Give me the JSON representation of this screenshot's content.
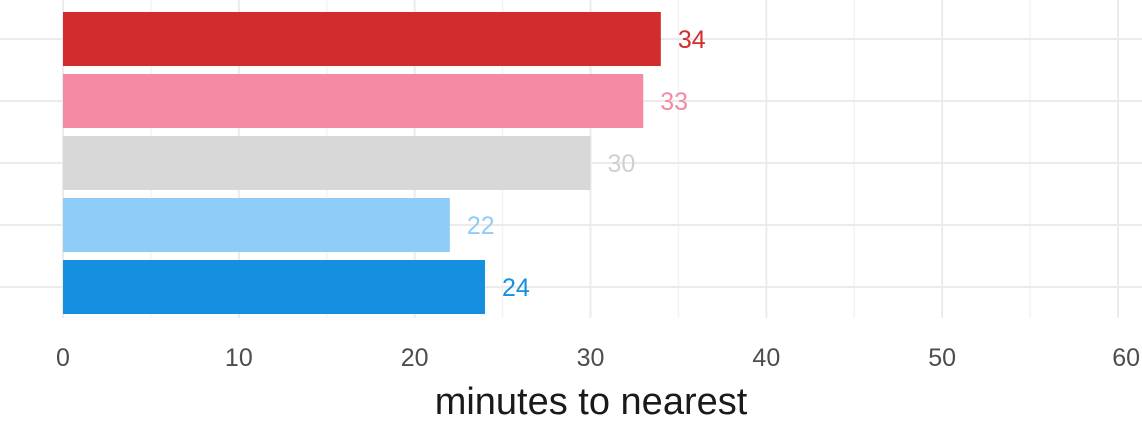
{
  "chart_data": {
    "type": "bar",
    "orientation": "horizontal",
    "title": "",
    "xlabel": "minutes to nearest",
    "ylabel": "",
    "xlim": [
      0,
      60
    ],
    "xticks": [
      0,
      10,
      20,
      30,
      40,
      50,
      60
    ],
    "grid": true,
    "legend": "none",
    "bars": [
      {
        "value": 34,
        "label": "34",
        "color": "#d22d2d",
        "label_color": "#d22d2d"
      },
      {
        "value": 33,
        "label": "33",
        "color": "#f48aa3",
        "label_color": "#f48aa3"
      },
      {
        "value": 30,
        "label": "30",
        "color": "#d8d8d8",
        "label_color": "#d0d0d0"
      },
      {
        "value": 22,
        "label": "22",
        "color": "#8ecdf7",
        "label_color": "#8ecdf7"
      },
      {
        "value": 24,
        "label": "24",
        "color": "#1590e0",
        "label_color": "#1590e0"
      }
    ]
  }
}
